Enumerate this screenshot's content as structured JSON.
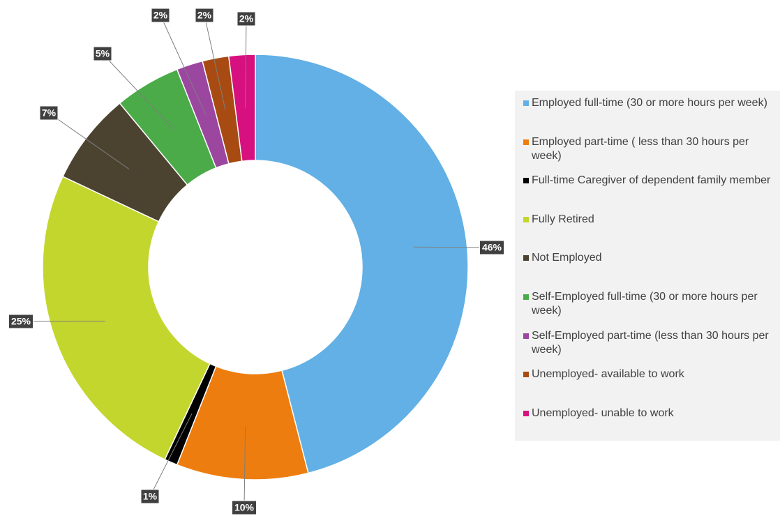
{
  "chart_data": {
    "type": "donut",
    "categories": [
      "Employed full-time (30 or more hours per week)",
      "Employed part-time ( less than 30 hours per week)",
      "Full-time Caregiver of dependent family member",
      "Fully Retired",
      "Not Employed",
      "Self-Employed full-time (30 or more hours per week)",
      "Self-Employed part-time (less than 30 hours per week)",
      "Unemployed- available to work",
      "Unemployed- unable to work"
    ],
    "values": [
      46,
      10,
      1,
      25,
      7,
      5,
      2,
      2,
      2
    ],
    "value_labels": [
      "46%",
      "10%",
      "1%",
      "25%",
      "7%",
      "5%",
      "2%",
      "2%",
      "2%"
    ],
    "colors": [
      "#62b0e5",
      "#ed7d0e",
      "#000000",
      "#c3d62d",
      "#4b4330",
      "#4aab48",
      "#9b479f",
      "#a84b13",
      "#d6117f"
    ],
    "legend": "right"
  }
}
